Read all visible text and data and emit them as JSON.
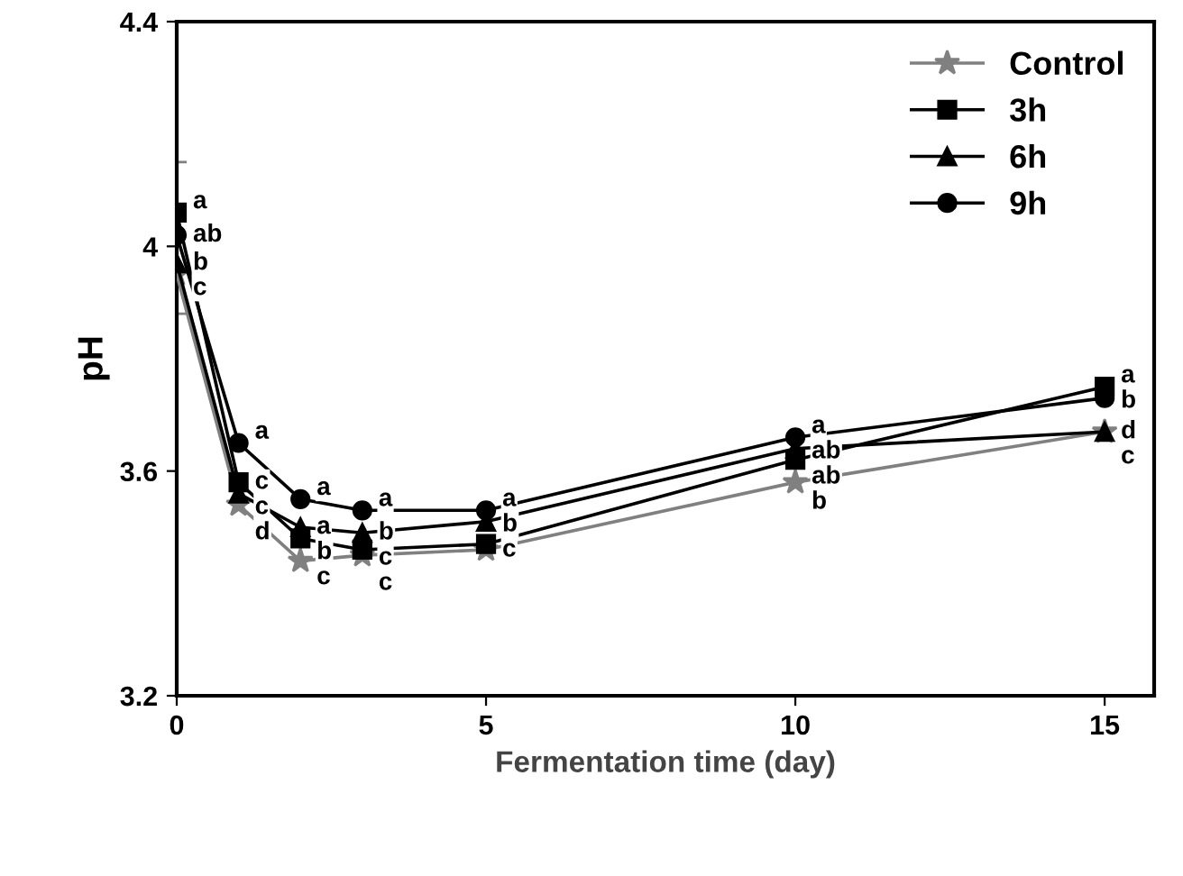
{
  "chart_data": {
    "type": "line",
    "xlabel": "Fermentation time (day)",
    "ylabel": "pH",
    "x": [
      0,
      1,
      2,
      3,
      5,
      10,
      15
    ],
    "xlim": [
      0,
      15.8
    ],
    "xticks": [
      0,
      5,
      10,
      15
    ],
    "ylim": [
      3.2,
      4.4
    ],
    "yticks": [
      3.2,
      3.6,
      4,
      4.4
    ],
    "grid": false,
    "legend": "top right",
    "line_style": "solid",
    "series": [
      {
        "name": "Control",
        "color": "#808080",
        "marker": "star",
        "values": [
          3.95,
          3.54,
          3.44,
          3.45,
          3.46,
          3.58,
          3.67
        ],
        "errors": [
          [
            3.88,
            4.15
          ],
          null,
          null,
          null,
          null,
          null,
          null
        ],
        "value_labels": [
          "c",
          "d",
          "c",
          "c",
          "c",
          "b",
          "d"
        ]
      },
      {
        "name": "3h",
        "color": "#000000",
        "marker": "square",
        "values": [
          4.06,
          3.58,
          3.48,
          3.46,
          3.47,
          3.62,
          3.75
        ],
        "value_labels": [
          "a",
          "c",
          "b",
          "c",
          null,
          "ab",
          "a"
        ]
      },
      {
        "name": "6h",
        "color": "#000000",
        "marker": "triangle",
        "values": [
          3.97,
          3.56,
          3.5,
          3.49,
          3.51,
          3.64,
          3.67
        ],
        "value_labels": [
          "b",
          "c",
          "a",
          "b",
          "b",
          "ab",
          "c"
        ]
      },
      {
        "name": "9h",
        "color": "#000000",
        "marker": "circle",
        "values": [
          4.02,
          3.65,
          3.55,
          3.53,
          3.53,
          3.66,
          3.73
        ],
        "value_labels": [
          "ab",
          "a",
          "a",
          "a",
          "a",
          "a",
          "b"
        ]
      }
    ]
  }
}
